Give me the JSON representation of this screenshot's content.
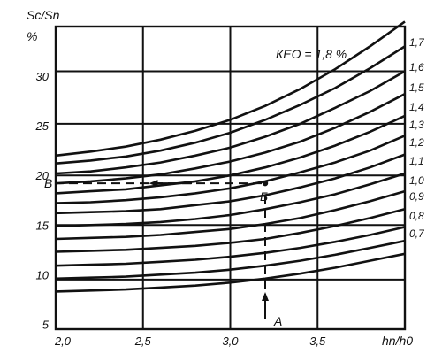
{
  "chart_data": {
    "type": "line",
    "title": "КЕО = 1,8 %",
    "ylabel": "Sc/Sn",
    "yunit": "%",
    "xlabel": "hn/h0",
    "xlim": [
      2.0,
      4.0
    ],
    "ylim": [
      4.5,
      35
    ],
    "x_ticks": [
      "2,0",
      "2,5",
      "3,0",
      "3,5"
    ],
    "y_ticks": [
      "5",
      "10",
      "15",
      "20",
      "25",
      "30"
    ],
    "x_grid": [
      2.5,
      3.0,
      3.5
    ],
    "y_grid": [
      9.5,
      15,
      20,
      25.2,
      30.5
    ],
    "grid": true,
    "x": [
      2.0,
      2.2,
      2.4,
      2.6,
      2.8,
      3.0,
      3.2,
      3.4,
      3.6,
      3.8,
      4.0
    ],
    "series": [
      {
        "name": "1,7",
        "values": [
          22.0,
          22.4,
          22.9,
          23.6,
          24.5,
          25.6,
          27.0,
          28.7,
          30.7,
          33.0,
          35.5
        ]
      },
      {
        "name": "1,6",
        "values": [
          21.2,
          21.5,
          21.9,
          22.5,
          23.3,
          24.3,
          25.6,
          27.1,
          28.8,
          30.8,
          33.0
        ]
      },
      {
        "name": "1,5",
        "values": [
          20.2,
          20.4,
          20.8,
          21.3,
          22.0,
          22.8,
          23.9,
          25.2,
          26.8,
          28.5,
          30.5
        ]
      },
      {
        "name": "1,4",
        "values": [
          19.2,
          19.4,
          19.7,
          20.1,
          20.7,
          21.4,
          22.3,
          23.4,
          24.8,
          26.4,
          28.2
        ]
      },
      {
        "name": "1,3",
        "values": [
          18.2,
          18.4,
          18.6,
          19.0,
          19.4,
          20.0,
          20.8,
          21.8,
          23.0,
          24.4,
          26.0
        ]
      },
      {
        "name": "1,2",
        "values": [
          17.2,
          17.3,
          17.5,
          17.8,
          18.2,
          18.7,
          19.4,
          20.3,
          21.3,
          22.5,
          24.0
        ]
      },
      {
        "name": "1,1",
        "values": [
          16.2,
          16.3,
          16.4,
          16.6,
          17.0,
          17.4,
          18.0,
          18.8,
          19.7,
          20.8,
          22.1
        ]
      },
      {
        "name": "1,0",
        "values": [
          14.9,
          15.0,
          15.1,
          15.3,
          15.6,
          16.0,
          16.6,
          17.3,
          18.1,
          19.1,
          20.2
        ]
      },
      {
        "name": "0,9",
        "values": [
          13.6,
          13.7,
          13.8,
          14.0,
          14.3,
          14.6,
          15.1,
          15.7,
          16.5,
          17.4,
          18.4
        ]
      },
      {
        "name": "0,8",
        "values": [
          12.3,
          12.4,
          12.5,
          12.7,
          12.9,
          13.2,
          13.6,
          14.2,
          14.9,
          15.7,
          16.6
        ]
      },
      {
        "name": "0,7",
        "values": [
          10.9,
          11.0,
          11.1,
          11.3,
          11.5,
          11.8,
          12.2,
          12.7,
          13.3,
          14.0,
          14.8
        ]
      },
      {
        "name": "",
        "values": [
          9.6,
          9.7,
          9.8,
          10.0,
          10.2,
          10.5,
          10.9,
          11.4,
          12.0,
          12.7,
          13.4
        ]
      },
      {
        "name": "",
        "values": [
          8.3,
          8.4,
          8.5,
          8.7,
          8.9,
          9.2,
          9.6,
          10.1,
          10.7,
          11.4,
          12.1
        ]
      }
    ],
    "annotations": {
      "A": {
        "label": "А",
        "x": 3.2,
        "y": 7.0
      },
      "B": {
        "label": "Б",
        "x": 3.2,
        "y": 19.2
      },
      "V": {
        "label": "В",
        "x": 2.0,
        "y": 19.2
      }
    },
    "dashed_guide": {
      "x": 3.2,
      "y": 19.2,
      "from_y": 4.5
    }
  }
}
